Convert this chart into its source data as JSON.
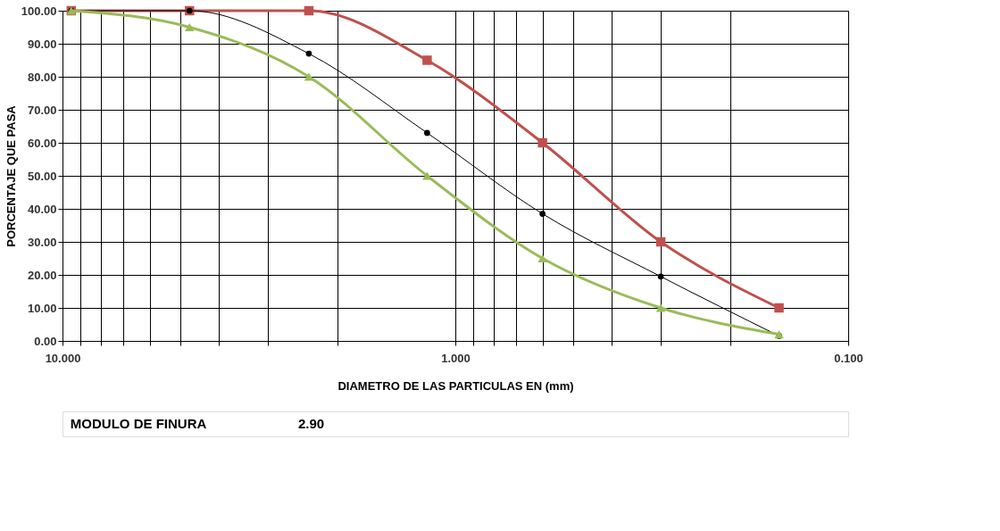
{
  "chart_data": {
    "type": "line",
    "xlabel": "DIAMETRO DE LAS PARTICULAS EN (mm)",
    "ylabel": "PORCENTAJE QUE PASA",
    "x": [
      9.5,
      4.75,
      2.36,
      1.18,
      0.6,
      0.3,
      0.15
    ],
    "series": [
      {
        "color": "#c0504d",
        "values": [
          100,
          100,
          100,
          85,
          60,
          30,
          10
        ],
        "marker": "square"
      },
      {
        "color": "#000000",
        "values": [
          100,
          100,
          87,
          63,
          38.5,
          19.5,
          1.5
        ],
        "marker": "circle"
      },
      {
        "color": "#9bbb59",
        "values": [
          100,
          95,
          80,
          50,
          25,
          10,
          2
        ],
        "marker": "triangle"
      }
    ],
    "log": "x",
    "xlim": [
      10,
      0.1
    ],
    "ylim": [
      0,
      100
    ],
    "xticks": [
      {
        "value": 10,
        "label": "10.000"
      },
      {
        "value": 9,
        "label": null
      },
      {
        "value": 8,
        "label": null
      },
      {
        "value": 7,
        "label": null
      },
      {
        "value": 6,
        "label": null
      },
      {
        "value": 5,
        "label": null
      },
      {
        "value": 4,
        "label": null
      },
      {
        "value": 3,
        "label": null
      },
      {
        "value": 2,
        "label": null
      },
      {
        "value": 1,
        "label": "1.000"
      },
      {
        "value": 0.9,
        "label": null
      },
      {
        "value": 0.8,
        "label": null
      },
      {
        "value": 0.7,
        "label": null
      },
      {
        "value": 0.6,
        "label": null
      },
      {
        "value": 0.5,
        "label": null
      },
      {
        "value": 0.4,
        "label": null
      },
      {
        "value": 0.3,
        "label": null
      },
      {
        "value": 0.2,
        "label": null
      },
      {
        "value": 0.1,
        "label": "0.100"
      }
    ],
    "yticks": [
      {
        "value": 0,
        "label": "0.00"
      },
      {
        "value": 10,
        "label": "10.00"
      },
      {
        "value": 20,
        "label": "20.00"
      },
      {
        "value": 30,
        "label": "30.00"
      },
      {
        "value": 40,
        "label": "40.00"
      },
      {
        "value": 50,
        "label": "50.00"
      },
      {
        "value": 60,
        "label": "60.00"
      },
      {
        "value": 70,
        "label": "70.00"
      },
      {
        "value": 80,
        "label": "80.00"
      },
      {
        "value": 90,
        "label": "90.00"
      },
      {
        "value": 100,
        "label": "100.00"
      }
    ],
    "grid": true,
    "annotations": [
      "MODULO DE FINURA",
      "2.90"
    ]
  }
}
